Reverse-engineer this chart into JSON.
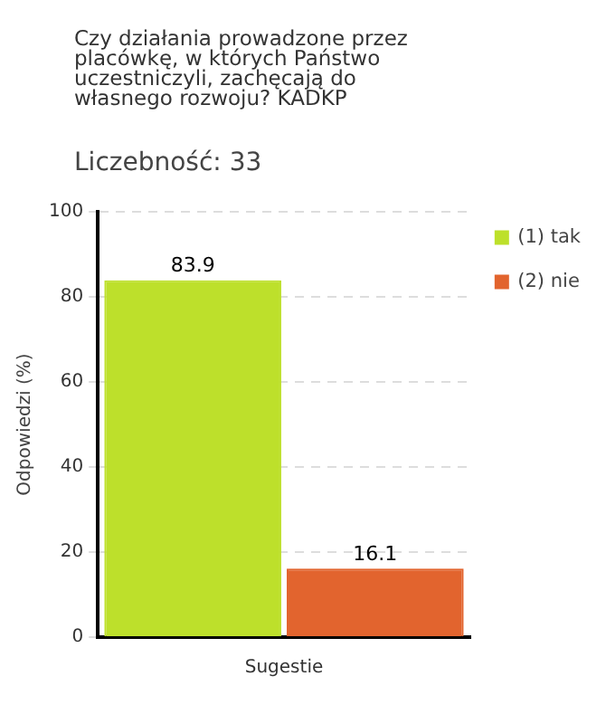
{
  "chart_data": {
    "type": "bar",
    "title": "Czy działania prowadzone przez placówkę, w których Państwo uczestniczyli, zachęcają do własnego rozwoju?  KADKP",
    "subtitle": "Liczebność: 33",
    "ylabel": "Odpowiedzi (%)",
    "categories": [
      "Sugestie"
    ],
    "series": [
      {
        "name": "(1) tak",
        "color": "#bde02b",
        "values": [
          83.9
        ]
      },
      {
        "name": "(2) nie",
        "color": "#e2642e",
        "values": [
          16.1
        ]
      }
    ],
    "ylim": [
      0,
      100
    ],
    "yticks": [
      0,
      20,
      40,
      60,
      80,
      100
    ],
    "grid": "y",
    "legend": "top right",
    "data_labels": true
  }
}
